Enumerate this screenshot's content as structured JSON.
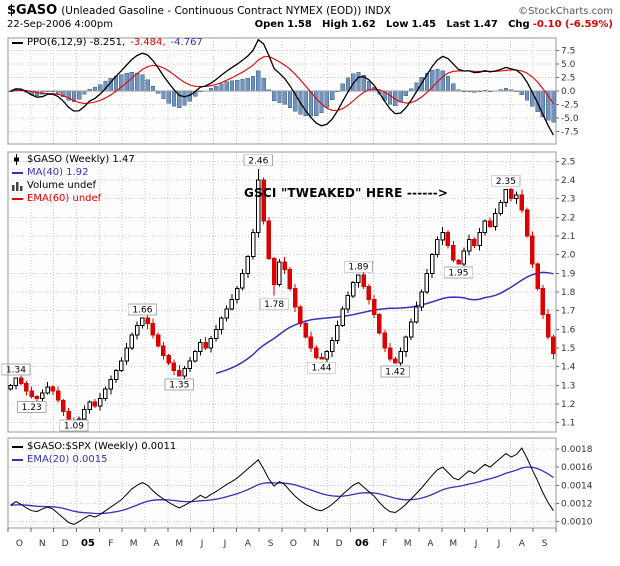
{
  "header": {
    "symbol": "$GASO",
    "description": "(Unleaded Gasoline - Continuous Contract NYMEX (EOD)) INDX",
    "credit": "©StockCharts.com",
    "timestamp": "22-Sep-2006 4:00pm",
    "quote": {
      "open_label": "Open",
      "open": "1.58",
      "high_label": "High",
      "high": "1.62",
      "low_label": "Low",
      "low": "1.45",
      "last_label": "Last",
      "last": "1.47",
      "chg_label": "Chg",
      "chg": "-0.10 (-6.59%)"
    }
  },
  "palette": {
    "black": "#000000",
    "red": "#e60000",
    "blue": "#3333bb",
    "candle_down": "#dd0000",
    "histogram": "#7094c0",
    "histogram_border": "#44608c",
    "grid": "#cccccc",
    "panel_border": "#999999",
    "axis_text": "#333333",
    "credit_gray": "#555555",
    "chg_red": "#dd0000"
  },
  "legends": {
    "ppo": {
      "segments": [
        {
          "text": "PPO(6,12,9) -8.251,",
          "color": "black"
        },
        {
          "text": "-3.484,",
          "color": "red"
        },
        {
          "text": "-4.767",
          "color": "blue"
        }
      ]
    },
    "price": {
      "lines": [
        {
          "text": "$GASO (Weekly) 1.47",
          "color": "black",
          "icon": "candlestick-icon"
        },
        {
          "text": "MA(40) 1.92",
          "color": "blue",
          "icon": "line-icon"
        },
        {
          "text": "Volume undef",
          "color": "black",
          "icon": "volume-bars-icon"
        },
        {
          "text": "EMA(60) undef",
          "color": "red",
          "icon": "line-icon"
        }
      ]
    },
    "ratio": {
      "lines": [
        {
          "text": "$GASO:$SPX (Weekly) 0.0011",
          "color": "black",
          "icon": "line-icon"
        },
        {
          "text": "EMA(20) 0.0015",
          "color": "blue",
          "icon": "line-icon"
        }
      ]
    }
  },
  "xaxis": {
    "months": [
      "O",
      "N",
      "D",
      "05",
      "F",
      "M",
      "A",
      "M",
      "J",
      "J",
      "A",
      "S",
      "O",
      "N",
      "D",
      "06",
      "F",
      "M",
      "A",
      "M",
      "J",
      "J",
      "A",
      "S"
    ],
    "year_indices": [
      3,
      15
    ],
    "weeks": 104
  },
  "chart_data": [
    {
      "panel": "ppo",
      "type": "bar",
      "title": "PPO(6,12,9)",
      "params": {
        "fast": 6,
        "slow": 12,
        "signal": 9
      },
      "last_values": {
        "ppo_line": -8.251,
        "signal_line": -3.484,
        "histogram": -4.767
      },
      "ylim": [
        -9.8,
        9.8
      ],
      "yticks": [
        "7.5",
        "5.0",
        "2.5",
        "0.0",
        "-2.5",
        "-5.0",
        "-7.5"
      ]
    },
    {
      "panel": "price",
      "type": "candlestick",
      "title": "$GASO (Weekly)",
      "last_close": 1.47,
      "ma40_last": 1.92,
      "ylim": [
        1.05,
        2.55
      ],
      "yticks": [
        "2.5",
        "2.4",
        "2.3",
        "2.2",
        "2.1",
        "2.0",
        "1.9",
        "1.8",
        "1.7",
        "1.6",
        "1.5",
        "1.4",
        "1.3",
        "1.2",
        "1.1"
      ],
      "closes": [
        1.3,
        1.34,
        1.31,
        1.27,
        1.24,
        1.23,
        1.26,
        1.29,
        1.27,
        1.22,
        1.16,
        1.1,
        1.09,
        1.12,
        1.17,
        1.21,
        1.19,
        1.23,
        1.28,
        1.33,
        1.38,
        1.43,
        1.5,
        1.57,
        1.62,
        1.66,
        1.63,
        1.57,
        1.51,
        1.46,
        1.42,
        1.38,
        1.35,
        1.39,
        1.43,
        1.48,
        1.53,
        1.5,
        1.55,
        1.6,
        1.66,
        1.71,
        1.76,
        1.82,
        1.9,
        1.99,
        2.12,
        2.4,
        2.18,
        1.98,
        1.84,
        1.96,
        1.92,
        1.82,
        1.72,
        1.63,
        1.56,
        1.5,
        1.45,
        1.44,
        1.48,
        1.54,
        1.62,
        1.71,
        1.78,
        1.85,
        1.89,
        1.83,
        1.76,
        1.68,
        1.58,
        1.5,
        1.44,
        1.42,
        1.48,
        1.56,
        1.64,
        1.72,
        1.8,
        1.9,
        2.0,
        2.08,
        2.12,
        2.05,
        1.97,
        1.95,
        2.02,
        2.08,
        2.05,
        2.12,
        2.18,
        2.15,
        2.22,
        2.28,
        2.35,
        2.3,
        2.32,
        2.24,
        2.1,
        1.95,
        1.82,
        1.68,
        1.56,
        1.47
      ],
      "markers": [
        {
          "week": 1,
          "price": 1.34,
          "side": "above",
          "label": "1.34"
        },
        {
          "week": 4,
          "price": 1.23,
          "side": "below",
          "label": "1.23"
        },
        {
          "week": 12,
          "price": 1.09,
          "side": "below",
          "label": "1.09"
        },
        {
          "week": 25,
          "price": 1.66,
          "side": "above",
          "label": "1.66"
        },
        {
          "week": 32,
          "price": 1.35,
          "side": "below",
          "label": "1.35"
        },
        {
          "week": 47,
          "price": 2.46,
          "side": "above",
          "label": "2.46"
        },
        {
          "week": 50,
          "price": 1.78,
          "side": "below",
          "label": "1.78"
        },
        {
          "week": 59,
          "price": 1.44,
          "side": "below",
          "label": "1.44"
        },
        {
          "week": 66,
          "price": 1.89,
          "side": "above",
          "label": "1.89"
        },
        {
          "week": 73,
          "price": 1.42,
          "side": "below",
          "label": "1.42"
        },
        {
          "week": 85,
          "price": 1.95,
          "side": "below",
          "label": "1.95"
        },
        {
          "week": 94,
          "price": 2.35,
          "side": "above",
          "label": "2.35"
        }
      ],
      "annotation": {
        "text": "GSCI \"TWEAKED\" HERE ------>",
        "week": 45,
        "price": 2.33
      }
    },
    {
      "panel": "ratio",
      "type": "line",
      "title": "$GASO:$SPX (Weekly)",
      "last_value": 0.0011,
      "ema20_last": 0.0015,
      "ylim": [
        0.00093,
        0.00192
      ],
      "yticks": [
        "0.0018",
        "0.0016",
        "0.0014",
        "0.0012",
        "0.0010"
      ],
      "values": [
        0.00118,
        0.00122,
        0.00119,
        0.00115,
        0.00112,
        0.00111,
        0.00114,
        0.00116,
        0.00114,
        0.00109,
        0.00104,
        0.00099,
        0.00097,
        0.001,
        0.00104,
        0.00107,
        0.00105,
        0.00108,
        0.00112,
        0.00116,
        0.0012,
        0.00124,
        0.0013,
        0.00136,
        0.0014,
        0.00143,
        0.0014,
        0.00134,
        0.00129,
        0.00125,
        0.00121,
        0.00118,
        0.00115,
        0.00118,
        0.00121,
        0.00125,
        0.00129,
        0.00126,
        0.0013,
        0.00133,
        0.00137,
        0.00141,
        0.00144,
        0.00148,
        0.00153,
        0.00158,
        0.00163,
        0.00168,
        0.00158,
        0.00147,
        0.00139,
        0.00144,
        0.00141,
        0.00134,
        0.00128,
        0.00123,
        0.00119,
        0.00116,
        0.00113,
        0.00112,
        0.00115,
        0.00119,
        0.00124,
        0.0013,
        0.00135,
        0.0014,
        0.00143,
        0.00138,
        0.00133,
        0.00128,
        0.00121,
        0.00115,
        0.00111,
        0.0011,
        0.00114,
        0.00119,
        0.00125,
        0.00131,
        0.00137,
        0.00144,
        0.00151,
        0.00157,
        0.0016,
        0.00154,
        0.00148,
        0.00146,
        0.00151,
        0.00156,
        0.00153,
        0.00158,
        0.00163,
        0.0016,
        0.00165,
        0.0017,
        0.00175,
        0.00171,
        0.00174,
        0.00181,
        0.0017,
        0.00157,
        0.00145,
        0.00132,
        0.00121,
        0.00112
      ]
    }
  ]
}
